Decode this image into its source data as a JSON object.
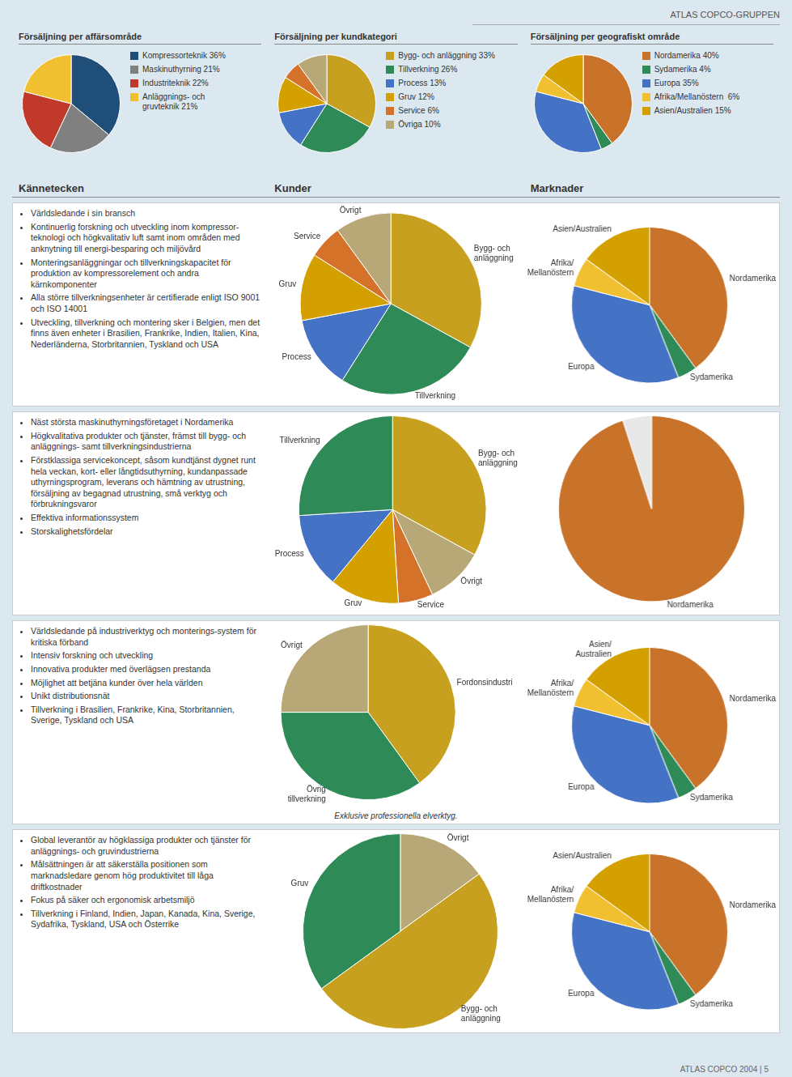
{
  "chart_data": [
    {
      "type": "pie",
      "title": "Försäljning per affärsområde",
      "categories": [
        "Kompressorteknik 36%",
        "Maskinuthyrning 21%",
        "Industriteknik 22%",
        "Anläggnings- och\ngruvteknik 21%"
      ],
      "values": [
        36,
        21,
        22,
        21
      ],
      "colors": [
        "#1f4e79",
        "#808080",
        "#c0392b",
        "#f0c030"
      ],
      "legend": "right",
      "annotations": [
        "ATLAS COPCO-GRUPPEN",
        "Kännetecken",
        "Kunder",
        "Marknader",
        "ATLAS COPCO 2004 | 5"
      ]
    },
    {
      "type": "pie",
      "title": "Försäljning per kundkategori",
      "categories": [
        "Bygg- och anläggning 33%",
        "Tillverkning 26%",
        "Process 13%",
        "Gruv 12%",
        "Service 6%",
        "Övriga 10%"
      ],
      "values": [
        33,
        26,
        13,
        12,
        6,
        10
      ],
      "colors": [
        "#c8a020",
        "#2e8b57",
        "#4472c4",
        "#d4a000",
        "#d4722a",
        "#b8a878"
      ],
      "legend": "right"
    },
    {
      "type": "pie",
      "title": "Försäljning per geografiskt område",
      "categories": [
        "Nordamerika 40%",
        "Sydamerika 4%",
        "Europa 35%",
        "Afrika/Mellanöstern  6%",
        "Asien/Australien 15%"
      ],
      "values": [
        40,
        4,
        35,
        6,
        15
      ],
      "colors": [
        "#c8722a",
        "#2e8b57",
        "#4472c4",
        "#f0c030",
        "#d4a000"
      ],
      "legend": "right"
    },
    {
      "type": "pie",
      "categories": [
        "Bygg- och anläggning",
        "Tillverkning",
        "Process",
        "Gruv",
        "Service",
        "Övrigt"
      ],
      "values": [
        33,
        26,
        13,
        12,
        6,
        10
      ],
      "colors": [
        "#c8a020",
        "#2e8b57",
        "#4472c4",
        "#d4a000",
        "#d4722a",
        "#b8a878"
      ],
      "annotations": [
        "Världsledande i sin bransch",
        "Kontinuerlig forskning och utveckling inom kompressor-teknologi och högkvalitativ luft samt inom områden med anknytning till energi-besparing och miljövård",
        "Monteringsanläggningar och tillverkningskapacitet för produktion av kompressorelement och andra kärnkomponenter",
        "Alla större tillverkningsenheter är certifierade enligt ISO 9001 och ISO 14001",
        "Utveckling, tillverkning och montering sker i Belgien, men det finns även enheter i Brasilien, Frankrike, Indien, Italien, Kina, Nederländerna, Storbritannien, Tyskland och USA"
      ]
    },
    {
      "type": "pie",
      "categories": [
        "Nordamerika",
        "Sydamerika",
        "Europa",
        "Afrika/\nMellanöstern",
        "Asien/Australien"
      ],
      "values": [
        40,
        4,
        35,
        6,
        15
      ],
      "colors": [
        "#c8722a",
        "#2e8b57",
        "#4472c4",
        "#f0c030",
        "#d4a000"
      ]
    },
    {
      "type": "pie",
      "categories": [
        "Bygg- och\nanläggning",
        "Övrigt",
        "Service",
        "Gruv",
        "Process",
        "Tillverkning"
      ],
      "values": [
        33,
        10,
        6,
        12,
        13,
        26
      ],
      "colors": [
        "#c8a020",
        "#b8a878",
        "#d4722a",
        "#d4a000",
        "#4472c4",
        "#2e8b57"
      ],
      "annotations": [
        "Näst största maskinuthyrningsföretaget i Nordamerika",
        "Högkvalitativa produkter och tjänster, främst till bygg- och anläggnings- samt tillverkningsindustrierna",
        "Förstklassiga servicekoncept, såsom kundtjänst dygnet runt hela veckan, kort- eller långtidsuthyrning, kundanpassade uthyrningsprogram, leverans och hämtning av utrustning, försäljning av begagnad utrustning, små verktyg och förbrukningsvaror",
        "Effektiva informationssystem",
        "Storskalighetsfördelar"
      ]
    },
    {
      "type": "pie",
      "categories": [
        "Nordamerika",
        null
      ],
      "values": [
        95,
        5
      ],
      "colors": [
        "#c8722a",
        "#e8e8e8"
      ]
    },
    {
      "type": "pie",
      "categories": [
        "Fordonsindustri",
        "Övrig\ntillverkning",
        "Övrigt"
      ],
      "values": [
        40,
        35,
        25
      ],
      "colors": [
        "#c8a020",
        "#2e8b57",
        "#b8a878"
      ],
      "subtitle": "Exklusive professionella elverktyg.",
      "annotations": [
        "Världsledande på industriverktyg och monterings-system för kritiska förband",
        "Intensiv forskning och utveckling",
        "Innovativa produkter med överlägsen prestanda",
        "Möjlighet att betjäna kunder över hela världen",
        "Unikt distributionsnät",
        "Tillverkning i Brasilien, Frankrike, Kina, Storbritannien, Sverige, Tyskland och USA"
      ]
    },
    {
      "type": "pie",
      "categories": [
        "Nordamerika",
        "Sydamerika",
        "Europa",
        "Afrika/\nMellanöstern",
        "Asien/\nAustralien"
      ],
      "values": [
        40,
        4,
        35,
        6,
        15
      ],
      "colors": [
        "#c8722a",
        "#2e8b57",
        "#4472c4",
        "#f0c030",
        "#d4a000"
      ]
    },
    {
      "type": "pie",
      "categories": [
        "Övrigt",
        "Bygg- och\nanläggning",
        "Gruv"
      ],
      "values": [
        15,
        50,
        35
      ],
      "colors": [
        "#b8a878",
        "#c8a020",
        "#2e8b57"
      ],
      "annotations": [
        "Global leverantör av högklassiga produkter och tjänster för anläggnings- och gruvindustrierna",
        "Målsättningen är att säkerställa positionen som marknadsledare genom hög produktivitet till låga driftkostnader",
        "Fokus på säker och ergonomisk arbetsmiljö",
        "Tillverkning i Finland, Indien, Japan, Kanada, Kina, Sverige, Sydafrika, Tyskland, USA och Österrike"
      ]
    },
    {
      "type": "pie",
      "categories": [
        "Nordamerika",
        "Sydamerika",
        "Europa",
        "Afrika/\nMellanöstern",
        "Asien/Australien"
      ],
      "values": [
        40,
        4,
        35,
        6,
        15
      ],
      "colors": [
        "#c8722a",
        "#2e8b57",
        "#4472c4",
        "#f0c030",
        "#d4a000"
      ]
    }
  ]
}
